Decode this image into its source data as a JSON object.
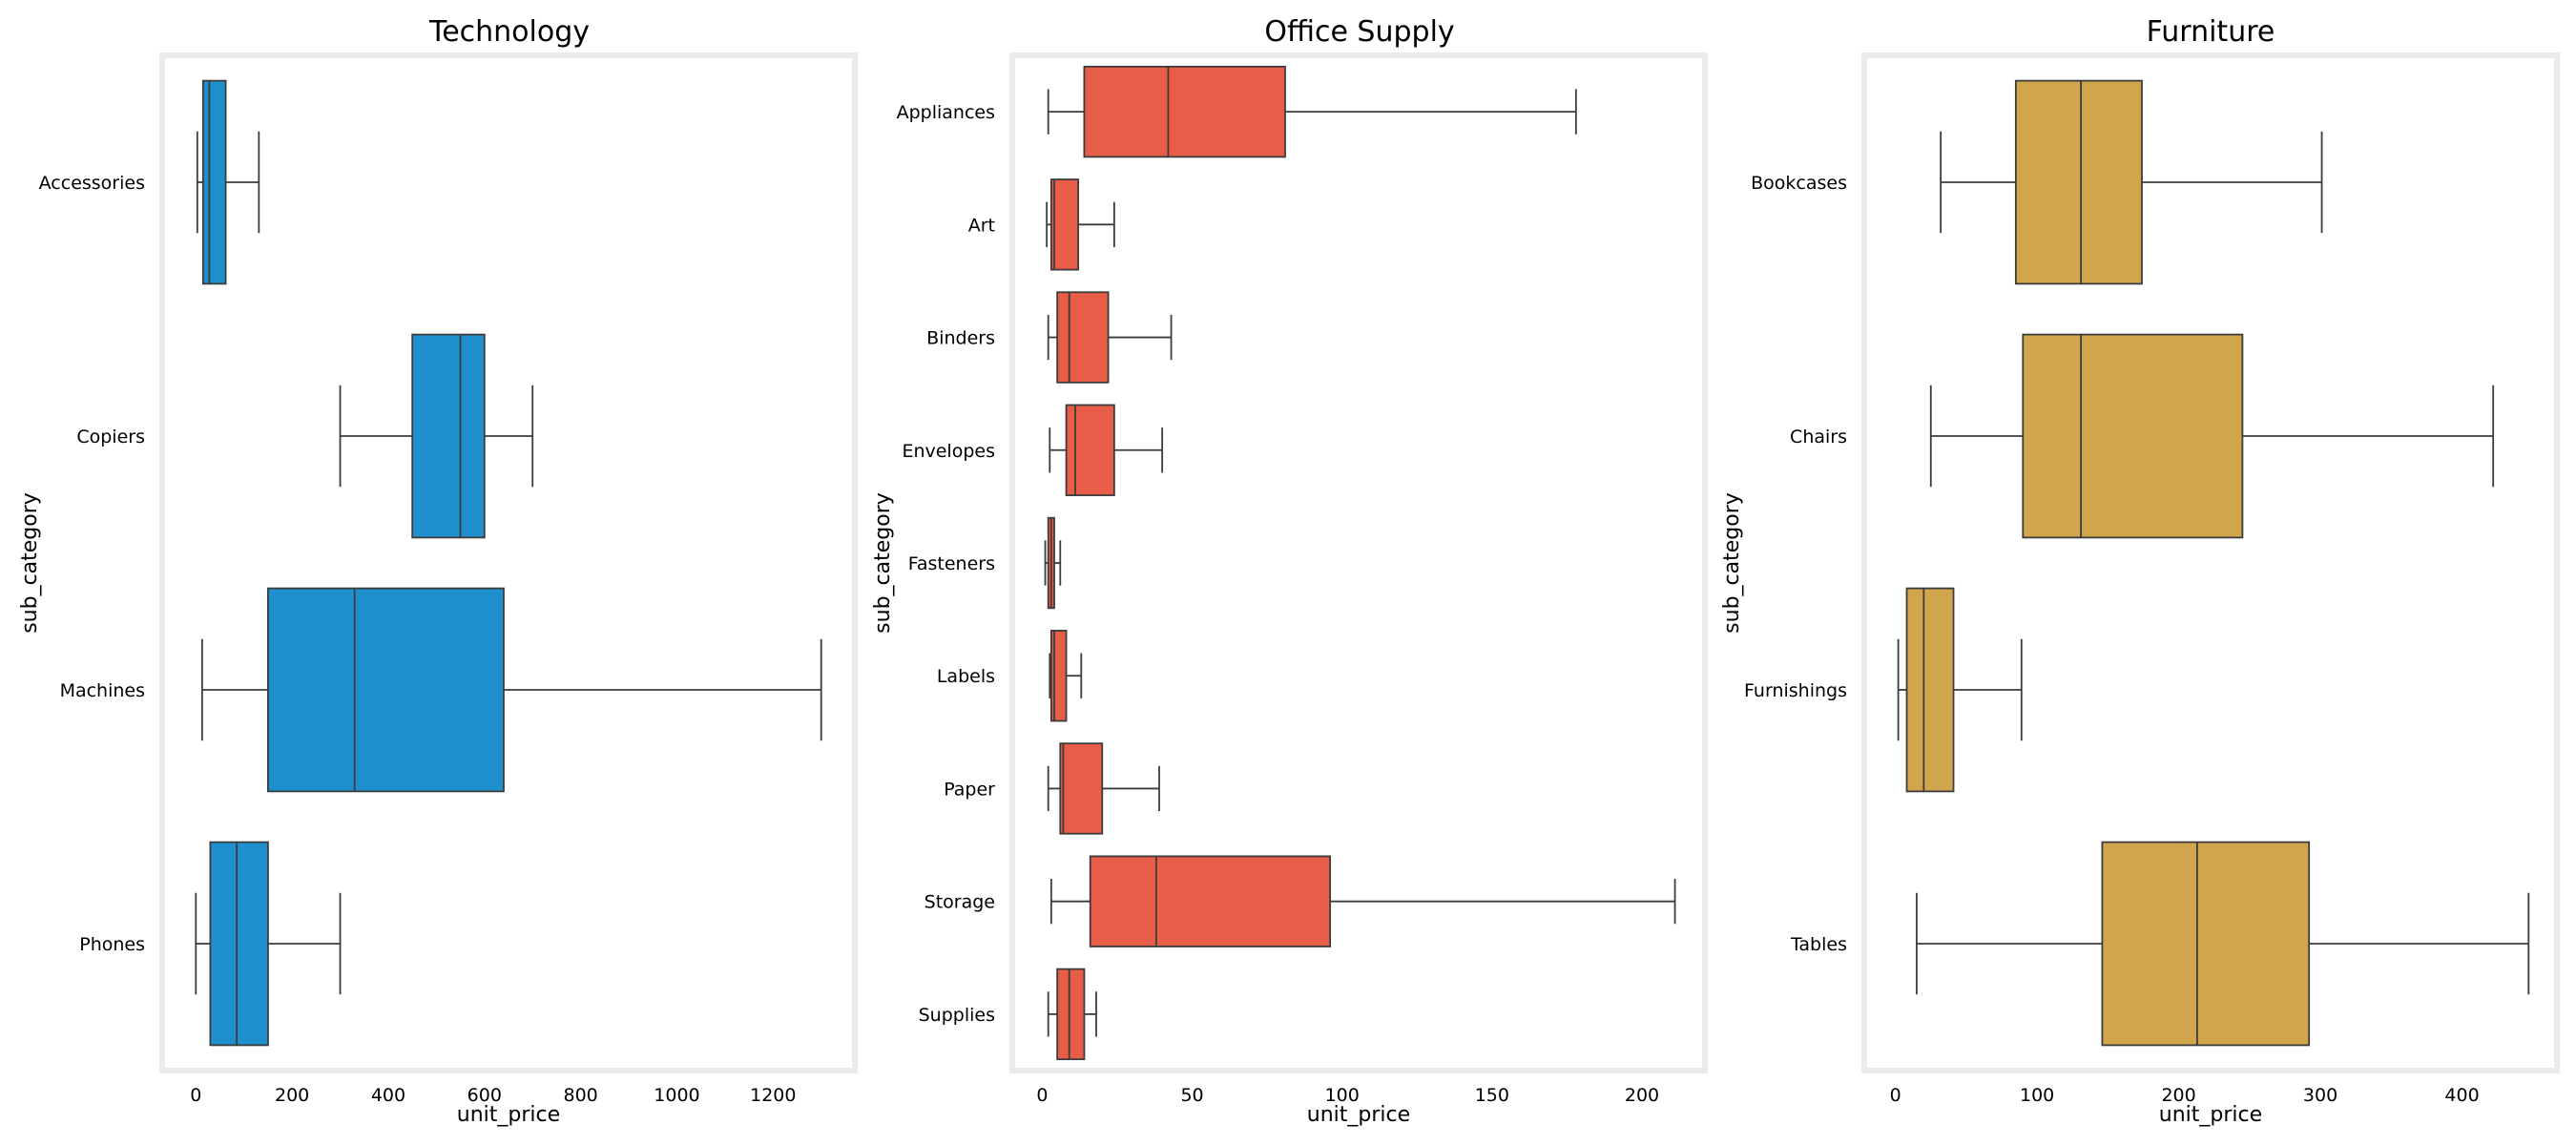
{
  "chart_data": [
    {
      "type": "boxplot",
      "orientation": "horizontal",
      "title": "Technology",
      "xlabel": "unit_price",
      "ylabel": "sub_category",
      "xlim": [
        -70,
        1370
      ],
      "xticks": [
        0,
        200,
        400,
        600,
        800,
        1000,
        1200
      ],
      "grid": false,
      "color": "#1f8fce",
      "categories": [
        "Accessories",
        "Copiers",
        "Machines",
        "Phones"
      ],
      "boxes": [
        {
          "category": "Accessories",
          "whislo": 3,
          "q1": 15,
          "med": 28,
          "q3": 62,
          "whishi": 131
        },
        {
          "category": "Copiers",
          "whislo": 300,
          "q1": 450,
          "med": 550,
          "q3": 600,
          "whishi": 700
        },
        {
          "category": "Machines",
          "whislo": 13,
          "q1": 150,
          "med": 330,
          "q3": 640,
          "whishi": 1300
        },
        {
          "category": "Phones",
          "whislo": 0,
          "q1": 30,
          "med": 85,
          "q3": 150,
          "whishi": 300
        }
      ]
    },
    {
      "type": "boxplot",
      "orientation": "horizontal",
      "title": "Office Supply",
      "xlabel": "unit_price",
      "ylabel": "sub_category",
      "xlim": [
        -10,
        221
      ],
      "xticks": [
        0,
        50,
        100,
        150,
        200
      ],
      "grid": false,
      "color": "#e85d47",
      "categories": [
        "Appliances",
        "Art",
        "Binders",
        "Envelopes",
        "Fasteners",
        "Labels",
        "Paper",
        "Storage",
        "Supplies"
      ],
      "boxes": [
        {
          "category": "Appliances",
          "whislo": 2,
          "q1": 14,
          "med": 42,
          "q3": 81,
          "whishi": 178
        },
        {
          "category": "Art",
          "whislo": 1.5,
          "q1": 3,
          "med": 4,
          "q3": 12,
          "whishi": 24
        },
        {
          "category": "Binders",
          "whislo": 2,
          "q1": 5,
          "med": 9,
          "q3": 22,
          "whishi": 43
        },
        {
          "category": "Envelopes",
          "whislo": 2.5,
          "q1": 8,
          "med": 11,
          "q3": 24,
          "whishi": 40
        },
        {
          "category": "Fasteners",
          "whislo": 1,
          "q1": 2,
          "med": 3,
          "q3": 4,
          "whishi": 6
        },
        {
          "category": "Labels",
          "whislo": 2.5,
          "q1": 3,
          "med": 4,
          "q3": 8,
          "whishi": 13
        },
        {
          "category": "Paper",
          "whislo": 2,
          "q1": 6,
          "med": 7,
          "q3": 20,
          "whishi": 39
        },
        {
          "category": "Storage",
          "whislo": 3,
          "q1": 16,
          "med": 38,
          "q3": 96,
          "whishi": 211
        },
        {
          "category": "Supplies",
          "whislo": 2,
          "q1": 5,
          "med": 9,
          "q3": 14,
          "whishi": 18
        }
      ]
    },
    {
      "type": "boxplot",
      "orientation": "horizontal",
      "title": "Furniture",
      "xlabel": "unit_price",
      "ylabel": "sub_category",
      "xlim": [
        -22,
        467
      ],
      "xticks": [
        0,
        100,
        200,
        300,
        400
      ],
      "grid": false,
      "color": "#d1a54b",
      "categories": [
        "Bookcases",
        "Chairs",
        "Furnishings",
        "Tables"
      ],
      "boxes": [
        {
          "category": "Bookcases",
          "whislo": 32,
          "q1": 85,
          "med": 131,
          "q3": 174,
          "whishi": 301
        },
        {
          "category": "Chairs",
          "whislo": 25,
          "q1": 90,
          "med": 131,
          "q3": 245,
          "whishi": 422
        },
        {
          "category": "Furnishings",
          "whislo": 2,
          "q1": 8,
          "med": 20,
          "q3": 41,
          "whishi": 89
        },
        {
          "category": "Tables",
          "whislo": 15,
          "q1": 146,
          "med": 213,
          "q3": 292,
          "whishi": 447
        }
      ]
    }
  ]
}
